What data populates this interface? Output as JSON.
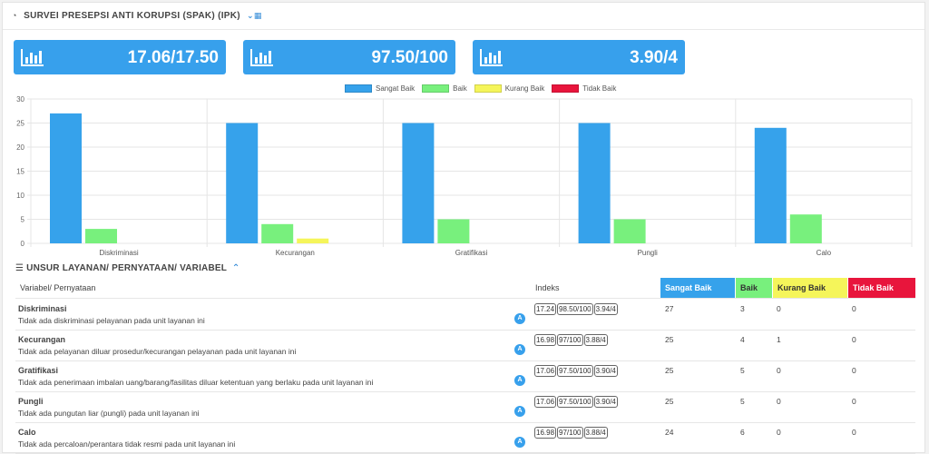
{
  "header": {
    "title": "SURVEI PRESEPSI ANTI KORUPSI (SPAK) (IPK)",
    "title_icon": "dashboard-icon",
    "collapse_icon": "chevron-down-chart-icon"
  },
  "stats": [
    {
      "value": "17.06/17.50",
      "icon": "bar-chart-icon"
    },
    {
      "value": "97.50/100",
      "icon": "bar-chart-icon"
    },
    {
      "value": "3.90/4",
      "icon": "bar-chart-icon"
    }
  ],
  "colors": {
    "sangat_baik": "#36a2eb",
    "baik": "#78f07d",
    "kurang_baik": "#f5f55a",
    "tidak_baik": "#e8153c",
    "accent": "#37a0ec"
  },
  "chart_data": {
    "type": "bar",
    "categories": [
      "Diskriminasi",
      "Kecurangan",
      "Gratifikasi",
      "Pungli",
      "Calo"
    ],
    "series": [
      {
        "name": "Sangat Baik",
        "values": [
          27,
          25,
          25,
          25,
          24
        ]
      },
      {
        "name": "Baik",
        "values": [
          3,
          4,
          5,
          5,
          6
        ]
      },
      {
        "name": "Kurang Baik",
        "values": [
          0,
          1,
          0,
          0,
          0
        ]
      },
      {
        "name": "Tidak Baik",
        "values": [
          0,
          0,
          0,
          0,
          0
        ]
      }
    ],
    "yticks": [
      "0",
      "5",
      "10",
      "15",
      "20",
      "25",
      "30"
    ],
    "ylim": [
      0,
      30
    ],
    "grid": true,
    "legend": "top-center"
  },
  "section": {
    "title": "UNSUR LAYANAN/ PERNYATAAN/ VARIABEL",
    "icon": "list-icon",
    "collapse_icon": "chevron-up-icon"
  },
  "table": {
    "headers": {
      "variable": "Variabel/ Pernyataan",
      "indeks": "Indeks",
      "sangat_baik": "Sangat Baik",
      "baik": "Baik",
      "kurang_baik": "Kurang Baik",
      "tidak_baik": "Tidak Baik"
    },
    "rows": [
      {
        "name": "Diskriminasi",
        "desc": "Tidak ada diskriminasi pelayanan pada unit layanan ini",
        "badge": "A",
        "idx": [
          "17.24",
          "98.50/100",
          "3.94/4"
        ],
        "sb": "27",
        "b": "3",
        "kb": "0",
        "tb": "0"
      },
      {
        "name": "Kecurangan",
        "desc": "Tidak ada pelayanan diluar prosedur/kecurangan pelayanan pada unit layanan ini",
        "badge": "A",
        "idx": [
          "16.98",
          "97/100",
          "3.88/4"
        ],
        "sb": "25",
        "b": "4",
        "kb": "1",
        "tb": "0"
      },
      {
        "name": "Gratifikasi",
        "desc": "Tidak ada penerimaan imbalan uang/barang/fasilitas diluar ketentuan yang berlaku pada unit layanan ini",
        "badge": "A",
        "idx": [
          "17.06",
          "97.50/100",
          "3.90/4"
        ],
        "sb": "25",
        "b": "5",
        "kb": "0",
        "tb": "0"
      },
      {
        "name": "Pungli",
        "desc": "Tidak ada pungutan liar (pungli) pada unit layanan ini",
        "badge": "A",
        "idx": [
          "17.06",
          "97.50/100",
          "3.90/4"
        ],
        "sb": "25",
        "b": "5",
        "kb": "0",
        "tb": "0"
      },
      {
        "name": "Calo",
        "desc": "Tidak ada percaloan/perantara tidak resmi pada unit layanan ini",
        "badge": "A",
        "idx": [
          "16.98",
          "97/100",
          "3.88/4"
        ],
        "sb": "24",
        "b": "6",
        "kb": "0",
        "tb": "0"
      }
    ]
  }
}
